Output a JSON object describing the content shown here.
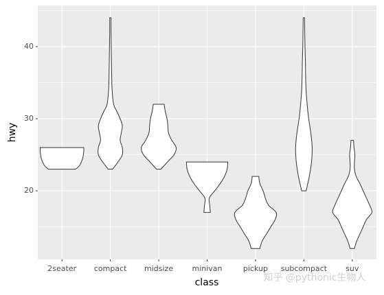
{
  "chart_data": {
    "type": "violin",
    "x_label": "class",
    "y_label": "hwy",
    "categories": [
      "2seater",
      "compact",
      "midsize",
      "minivan",
      "pickup",
      "subcompact",
      "suv"
    ],
    "violins": [
      {
        "y": [
          23,
          23.5,
          24.5,
          25.5,
          26
        ],
        "w": [
          0.62,
          0.8,
          0.95,
          1,
          1
        ]
      },
      {
        "y": [
          23,
          24,
          25,
          26,
          27,
          28,
          29,
          30,
          31,
          32,
          34,
          36,
          38,
          40,
          42,
          44
        ],
        "w": [
          0.1,
          0.35,
          0.55,
          0.55,
          0.45,
          0.5,
          0.55,
          0.45,
          0.3,
          0.15,
          0.08,
          0.06,
          0.05,
          0.04,
          0.03,
          0.03
        ]
      },
      {
        "y": [
          23,
          24,
          25,
          26,
          27,
          28,
          29,
          30,
          31,
          32
        ],
        "w": [
          0.1,
          0.4,
          0.7,
          0.8,
          0.6,
          0.45,
          0.42,
          0.38,
          0.3,
          0.25
        ]
      },
      {
        "y": [
          17,
          18,
          19,
          20,
          21,
          22,
          23,
          24
        ],
        "w": [
          0.15,
          0.12,
          0.1,
          0.35,
          0.6,
          0.8,
          0.92,
          0.95
        ]
      },
      {
        "y": [
          12,
          13,
          14,
          15,
          16,
          17,
          18,
          19,
          20,
          21,
          22
        ],
        "w": [
          0.2,
          0.3,
          0.5,
          0.7,
          0.9,
          0.95,
          0.6,
          0.45,
          0.35,
          0.2,
          0.15
        ]
      },
      {
        "y": [
          20,
          22,
          24,
          26,
          28,
          30,
          32,
          34,
          36,
          38,
          40,
          42,
          44
        ],
        "w": [
          0.1,
          0.25,
          0.35,
          0.38,
          0.32,
          0.22,
          0.15,
          0.1,
          0.08,
          0.07,
          0.05,
          0.04,
          0.03
        ]
      },
      {
        "y": [
          12,
          13,
          14,
          15,
          16,
          17,
          18,
          19,
          20,
          21,
          22,
          23,
          24,
          25,
          26,
          27
        ],
        "w": [
          0.1,
          0.2,
          0.35,
          0.5,
          0.65,
          0.9,
          0.8,
          0.65,
          0.5,
          0.35,
          0.18,
          0.1,
          0.1,
          0.12,
          0.08,
          0.06
        ]
      }
    ],
    "ylim": [
      10.5,
      45.7
    ],
    "yticks": [
      20,
      30,
      40
    ],
    "yminor": [
      15,
      25,
      35,
      45
    ],
    "grid": true,
    "fill": "#ffffff",
    "stroke": "#333333",
    "background": "#ebebeb",
    "watermark": "知乎 @pythonic生物人"
  }
}
